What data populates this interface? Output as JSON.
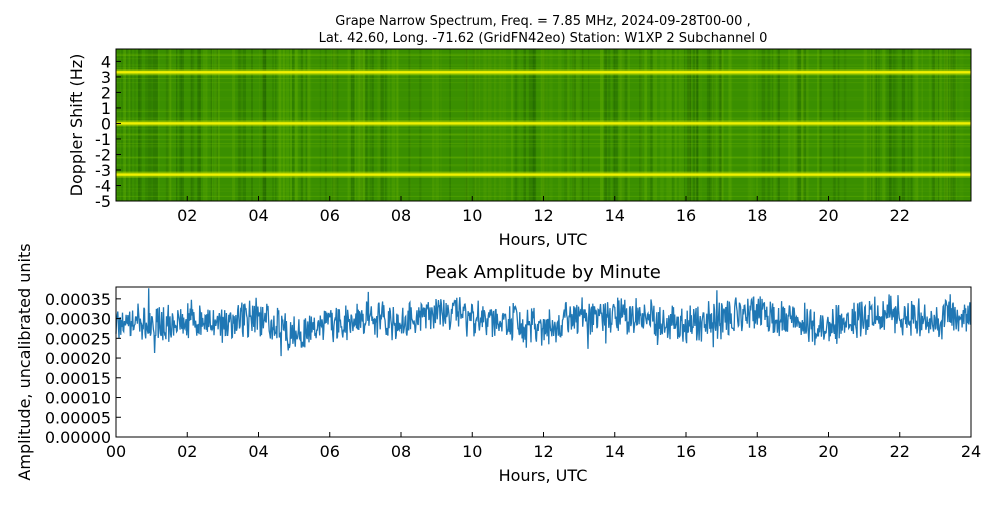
{
  "chart_data": [
    {
      "type": "heatmap",
      "title_line1": "Grape Narrow Spectrum, Freq. = 7.85 MHz, 2024-09-28T00-00 ,",
      "title_line2": "Lat.  42.60, Long. -71.62 (GridFN42eo) Station: W1XP 2 Subchannel 0",
      "xlabel": "Hours, UTC",
      "ylabel": "Doppler Shift (Hz)",
      "xlim": [
        0,
        24
      ],
      "ylim": [
        -5,
        4.8
      ],
      "xticks": [
        "02",
        "04",
        "06",
        "08",
        "10",
        "12",
        "14",
        "16",
        "18",
        "20",
        "22"
      ],
      "xtick_values": [
        2,
        4,
        6,
        8,
        10,
        12,
        14,
        16,
        18,
        20,
        22
      ],
      "yticks": [
        "4",
        "3",
        "2",
        "1",
        "0",
        "-1",
        "-2",
        "-3",
        "-4",
        "-5"
      ],
      "ytick_values": [
        4,
        3,
        2,
        1,
        0,
        -1,
        -2,
        -3,
        -4,
        -5
      ],
      "bright_bands_hz": [
        3.3,
        0.0,
        -3.3
      ],
      "colors": {
        "background": "#3a8f00",
        "band": "#f0f000",
        "dark": "#1e6000"
      }
    },
    {
      "type": "line",
      "title": "Peak Amplitude by Minute",
      "xlabel": "Hours, UTC",
      "ylabel": "Amplitude, uncalibrated units",
      "xlim": [
        0,
        24
      ],
      "ylim": [
        0,
        0.00038
      ],
      "xticks": [
        "00",
        "02",
        "04",
        "06",
        "08",
        "10",
        "12",
        "14",
        "16",
        "18",
        "20",
        "22",
        "24"
      ],
      "xtick_values": [
        0,
        2,
        4,
        6,
        8,
        10,
        12,
        14,
        16,
        18,
        20,
        22,
        24
      ],
      "yticks": [
        "0.00035",
        "0.00030",
        "0.00025",
        "0.00020",
        "0.00015",
        "0.00010",
        "0.00005",
        "0.00000"
      ],
      "ytick_values": [
        0.00035,
        0.0003,
        0.00025,
        0.0002,
        0.00015,
        0.0001,
        5e-05,
        0
      ],
      "line_color": "#1f77b4",
      "series_base": [
        [
          0,
          0.00029
        ],
        [
          1,
          0.00028
        ],
        [
          2,
          0.0003
        ],
        [
          3,
          0.00028
        ],
        [
          4,
          0.00031
        ],
        [
          5,
          0.00026
        ],
        [
          6,
          0.00029
        ],
        [
          7,
          0.0003
        ],
        [
          8,
          0.00029
        ],
        [
          9,
          0.00032
        ],
        [
          10,
          0.0003
        ],
        [
          11,
          0.00029
        ],
        [
          12,
          0.00027
        ],
        [
          13,
          0.00031
        ],
        [
          14,
          0.00031
        ],
        [
          15,
          0.0003
        ],
        [
          16,
          0.00028
        ],
        [
          17,
          0.0003
        ],
        [
          18,
          0.00031
        ],
        [
          19,
          0.00029
        ],
        [
          20,
          0.00028
        ],
        [
          21,
          0.00031
        ],
        [
          22,
          0.00031
        ],
        [
          23,
          0.00029
        ],
        [
          24,
          0.0003
        ]
      ]
    }
  ]
}
